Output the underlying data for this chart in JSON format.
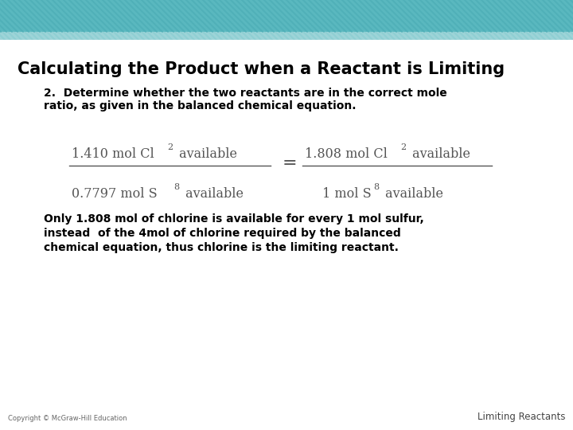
{
  "title": "Calculating the Product when a Reactant is Limiting",
  "subtitle_line1": "2.  Determine whether the two reactants are in the correct mole",
  "subtitle_line2": "ratio, as given in the balanced chemical equation.",
  "body_text_line1": "Only 1.808 mol of chlorine is available for every 1 mol sulfur,",
  "body_text_line2": "instead  of the 4mol of chlorine required by the balanced",
  "body_text_line3": "chemical equation, thus chlorine is the limiting reactant.",
  "footer_left": "Copyright © McGraw-Hill Education",
  "footer_right": "Limiting Reactants",
  "header_teal": "#5ab8bf",
  "header_light": "#9dd4d8",
  "bg_white": "#ffffff",
  "title_color": "#000000",
  "frac_color": "#555555",
  "body_color": "#000000",
  "header_stripe_dark": "#4aabb4",
  "header_stripe_light": "#8ecfd4"
}
